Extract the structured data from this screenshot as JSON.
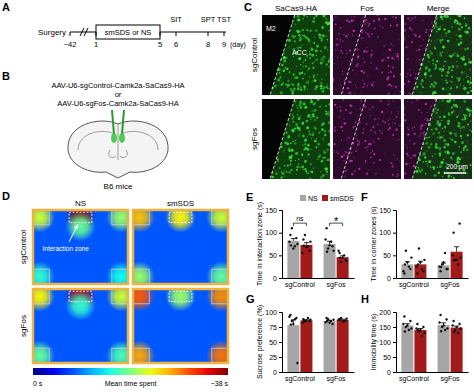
{
  "panel_labels": [
    "A",
    "B",
    "C",
    "D",
    "E",
    "F",
    "G",
    "H"
  ],
  "timeline": {
    "start": {
      "label": "Surgery",
      "day": {
        "value": -42,
        "label": "−42"
      }
    },
    "treatment": {
      "label": "smSDS or NS",
      "from": 1,
      "to": 5
    },
    "tests": [
      {
        "label": "SIT",
        "day": 6
      },
      {
        "label": "SPT",
        "day": 8
      },
      {
        "label": "TST",
        "day": 9
      }
    ],
    "unit": "(day)"
  },
  "injection": {
    "lines": [
      "AAV-U6-sgControl-Camk2a-SaCas9-HA",
      "or",
      "AAV-U6-sgFos-Camk2a-SaCas9-HA"
    ],
    "animal": "B6 mice"
  },
  "images": {
    "columns": [
      "SaCas9-HA",
      "Fos",
      "Merge"
    ],
    "rows": [
      "sgControl",
      "sgFos"
    ],
    "regions": [
      "M2",
      "ACC"
    ],
    "scale_bar": "200 μm"
  },
  "heatmaps": {
    "columns": [
      "NS",
      "smSDS"
    ],
    "rows": [
      "sgControl",
      "sgFos"
    ],
    "annotation": "Interaction zone",
    "background": 8,
    "colorbar": {
      "title": "Mean time spent",
      "range": [
        0,
        38
      ],
      "ticks": [
        {
          "value": 0,
          "label": "0 s"
        },
        {
          "value": 38,
          "label": "~38 s"
        }
      ]
    },
    "maps": [
      [
        {
          "hotspots": [
            {
              "x": 0.5,
              "y": 0.1,
              "value": 38
            },
            {
              "x": 0.07,
              "y": 0.1,
              "value": 22
            },
            {
              "x": 0.93,
              "y": 0.1,
              "value": 20
            },
            {
              "x": 0.07,
              "y": 0.9,
              "value": 16
            },
            {
              "x": 0.93,
              "y": 0.9,
              "value": 15
            },
            {
              "x": 0.5,
              "y": 0.22,
              "value": 18
            }
          ]
        },
        {
          "hotspots": [
            {
              "x": 0.5,
              "y": 0.1,
              "value": 24
            },
            {
              "x": 0.07,
              "y": 0.1,
              "value": 26
            },
            {
              "x": 0.93,
              "y": 0.1,
              "value": 22
            },
            {
              "x": 0.07,
              "y": 0.9,
              "value": 20
            },
            {
              "x": 0.93,
              "y": 0.9,
              "value": 18
            }
          ]
        }
      ],
      [
        {
          "hotspots": [
            {
              "x": 0.5,
              "y": 0.1,
              "value": 36
            },
            {
              "x": 0.07,
              "y": 0.1,
              "value": 24
            },
            {
              "x": 0.93,
              "y": 0.1,
              "value": 22
            },
            {
              "x": 0.07,
              "y": 0.9,
              "value": 18
            },
            {
              "x": 0.93,
              "y": 0.9,
              "value": 17
            },
            {
              "x": 0.5,
              "y": 0.22,
              "value": 16
            }
          ]
        },
        {
          "hotspots": [
            {
              "x": 0.5,
              "y": 0.1,
              "value": 20
            },
            {
              "x": 0.07,
              "y": 0.1,
              "value": 30
            },
            {
              "x": 0.93,
              "y": 0.1,
              "value": 28
            },
            {
              "x": 0.07,
              "y": 0.9,
              "value": 27
            },
            {
              "x": 0.93,
              "y": 0.9,
              "value": 29
            }
          ]
        }
      ]
    ]
  },
  "chart_data": [
    {
      "type": "bar",
      "ylabel": "Time in interaction zone (s)",
      "categories": [
        "sgControl",
        "sgFos"
      ],
      "ylim": [
        0,
        150
      ],
      "yticks": [
        0,
        50,
        100,
        150
      ],
      "legend": "top",
      "series": [
        {
          "name": "NS",
          "color": "#a6a6a6",
          "values": [
            82,
            75
          ],
          "errors": [
            5,
            6
          ],
          "points": [
            [
              95,
              88,
              110,
              70,
              80,
              75,
              65,
              72
            ],
            [
              110,
              70,
              65,
              80,
              85,
              60,
              72,
              58
            ]
          ]
        },
        {
          "name": "smSDS",
          "color": "#a11b1b",
          "values": [
            73,
            46
          ],
          "errors": [
            5,
            3
          ],
          "points": [
            [
              85,
              60,
              95,
              70,
              55,
              80,
              68,
              71
            ],
            [
              55,
              40,
              35,
              50,
              60,
              38,
              45,
              45
            ]
          ]
        }
      ],
      "annotations": [
        {
          "text": "ns",
          "category": "sgControl"
        },
        {
          "text": "*",
          "category": "sgFos"
        }
      ]
    },
    {
      "type": "bar",
      "ylabel": "Time in corner zones (s)",
      "categories": [
        "sgControl",
        "sgFos"
      ],
      "ylim": [
        0,
        150
      ],
      "yticks": [
        0,
        50,
        100,
        150
      ],
      "series": [
        {
          "name": "NS",
          "color": "#a6a6a6",
          "values": [
            30,
            28
          ],
          "errors": [
            6,
            5
          ],
          "points": [
            [
              10,
              20,
              60,
              25,
              15,
              45,
              35,
              30
            ],
            [
              15,
              20,
              30,
              55,
              25,
              20,
              35,
              24
            ]
          ]
        },
        {
          "name": "smSDS",
          "color": "#a11b1b",
          "values": [
            30,
            58
          ],
          "errors": [
            7,
            11
          ],
          "points": [
            [
              10,
              15,
              65,
              20,
              25,
              40,
              35,
              30
            ],
            [
              100,
              120,
              40,
              30,
              50,
              45,
              40,
              39
            ]
          ]
        }
      ]
    },
    {
      "type": "bar",
      "ylabel": "Sucrose preference (%)",
      "categories": [
        "sgControl",
        "sgFos"
      ],
      "ylim": [
        0,
        100
      ],
      "yticks": [
        0,
        25,
        50,
        75,
        100
      ],
      "series": [
        {
          "name": "NS",
          "color": "#a6a6a6",
          "values": [
            78,
            85
          ],
          "errors": [
            9,
            1
          ],
          "points": [
            [
              95,
              90,
              85,
              88,
              92,
              15,
              80,
              79
            ],
            [
              90,
              80,
              88,
              85,
              83,
              87,
              82,
              85
            ]
          ]
        },
        {
          "name": "smSDS",
          "color": "#a11b1b",
          "values": [
            86,
            87
          ],
          "errors": [
            1,
            1
          ],
          "points": [
            [
              88,
              85,
              84,
              90,
              82,
              87,
              86,
              86
            ],
            [
              88,
              86,
              90,
              85,
              87,
              89,
              84,
              87
            ]
          ]
        }
      ]
    },
    {
      "type": "bar",
      "ylabel": "Immobility time (s)",
      "categories": [
        "sgControl",
        "sgFos"
      ],
      "ylim": [
        0,
        200
      ],
      "yticks": [
        0,
        50,
        100,
        150,
        200
      ],
      "series": [
        {
          "name": "NS",
          "color": "#a6a6a6",
          "values": [
            155,
            157
          ],
          "errors": [
            6,
            7
          ],
          "points": [
            [
              185,
              170,
              150,
              140,
              160,
              145,
              155,
              135
            ],
            [
              190,
              175,
              150,
              140,
              165,
              145,
              155,
              136
            ]
          ]
        },
        {
          "name": "smSDS",
          "color": "#a11b1b",
          "values": [
            140,
            148
          ],
          "errors": [
            5,
            5
          ],
          "points": [
            [
              160,
              150,
              135,
              120,
              145,
              130,
              140,
              140
            ],
            [
              170,
              160,
              140,
              130,
              155,
              145,
              150,
              134
            ]
          ]
        }
      ]
    }
  ]
}
